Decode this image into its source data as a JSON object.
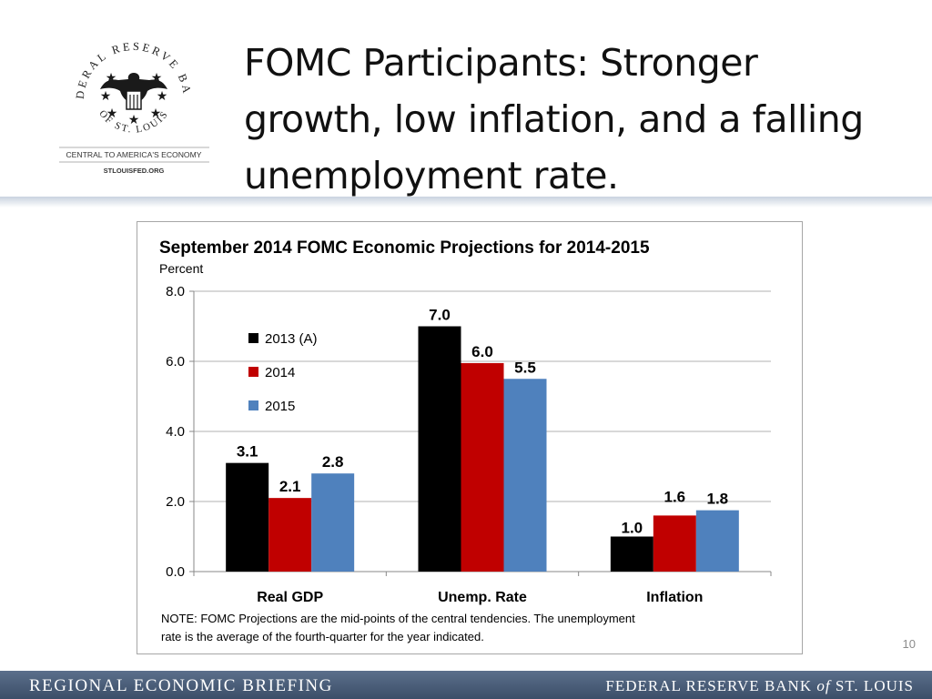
{
  "logo": {
    "ring_top": "FEDERAL RESERVE BANK",
    "ring_bottom": "OF ST. LOUIS",
    "tagline": "CENTRAL TO AMERICA'S ECONOMY",
    "url": "STLOUISFED.ORG"
  },
  "slide": {
    "title_lines": [
      "FOMC Participants:  Stronger",
      "growth, low inflation, and a falling",
      "unemployment rate."
    ],
    "page_number": "10"
  },
  "footer": {
    "left": "REGIONAL ECONOMIC BRIEFING",
    "right_1": "FEDERAL RESERVE BANK ",
    "right_of": "of",
    "right_2": " ST. LOUIS"
  },
  "colors": {
    "s2013": "#000000",
    "s2014": "#c00000",
    "s2015": "#4f81bd",
    "footer": "#4a5d78"
  },
  "chart_data": {
    "type": "bar",
    "title": "September 2014 FOMC Economic Projections for 2014-2015",
    "ylabel": "Percent",
    "xlabel": "",
    "categories": [
      "Real GDP",
      "Unemp. Rate",
      "Inflation"
    ],
    "series": [
      {
        "name": "2013 (A)",
        "values": [
          3.1,
          7.0,
          1.0
        ],
        "labels": [
          "3.1",
          "7.0",
          "1.0"
        ],
        "color": "#000000"
      },
      {
        "name": "2014",
        "values": [
          2.1,
          5.95,
          1.6
        ],
        "labels": [
          "2.1",
          "6.0",
          "1.6"
        ],
        "color": "#c00000"
      },
      {
        "name": "2015",
        "values": [
          2.8,
          5.5,
          1.75
        ],
        "labels": [
          "2.8",
          "5.5",
          "1.8"
        ],
        "color": "#4f81bd"
      }
    ],
    "ylim": [
      0,
      8
    ],
    "yticks": [
      "0.0",
      "2.0",
      "4.0",
      "6.0",
      "8.0"
    ],
    "grid": true,
    "legend_position": "upper-left",
    "note_lines": [
      "NOTE:  FOMC Projections are the mid-points of the central tendencies.  The unemployment",
      "rate is the average of the fourth-quarter for the year indicated."
    ]
  }
}
